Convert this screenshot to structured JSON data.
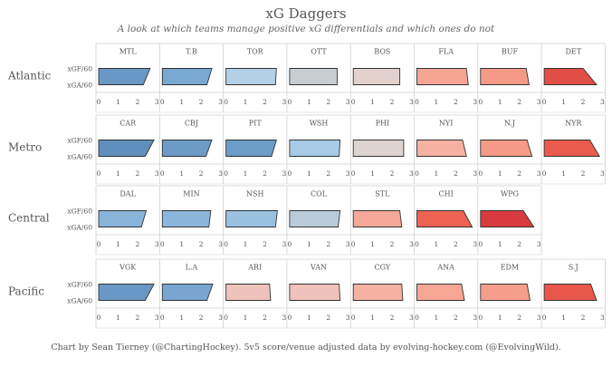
{
  "header": {
    "title": "xG Daggers",
    "subtitle": "A look at which teams manage positive xG differentials and which ones do not"
  },
  "caption": "Chart by Sean Tierney (@ChartingHockey). 5v5 score/venue adjusted data by evolving-hockey.com (@EvolvingWild).",
  "chart_data": {
    "type": "bar",
    "title": "xG Daggers",
    "subtitle": "A look at which teams manage positive xG differentials and which ones do not",
    "row_labels": [
      "xGF/60",
      "xGA/60"
    ],
    "xlim": [
      0,
      3
    ],
    "xticks": [
      "0",
      "1",
      "2",
      "3"
    ],
    "divisions": [
      {
        "name": "Atlantic",
        "teams": [
          {
            "team": "MTL",
            "xgf": 2.65,
            "xga": 2.3,
            "color": "#6a98c6"
          },
          {
            "team": "T.B",
            "xgf": 2.55,
            "xga": 2.3,
            "color": "#79a8d2"
          },
          {
            "team": "TOR",
            "xgf": 2.6,
            "xga": 2.55,
            "color": "#b3d0e6"
          },
          {
            "team": "OTT",
            "xgf": 2.45,
            "xga": 2.45,
            "color": "#c8cdd2"
          },
          {
            "team": "BOS",
            "xgf": 2.4,
            "xga": 2.4,
            "color": "#e2d0cc"
          },
          {
            "team": "FLA",
            "xgf": 2.55,
            "xga": 2.65,
            "color": "#f6a595"
          },
          {
            "team": "BUF",
            "xgf": 2.35,
            "xga": 2.5,
            "color": "#f49a87"
          },
          {
            "team": "DET",
            "xgf": 2.0,
            "xga": 2.7,
            "color": "#e04e45"
          }
        ]
      },
      {
        "name": "Metro",
        "teams": [
          {
            "team": "CAR",
            "xgf": 2.85,
            "xga": 2.4,
            "color": "#5f8fbd"
          },
          {
            "team": "CBJ",
            "xgf": 2.55,
            "xga": 2.25,
            "color": "#6d9bc8"
          },
          {
            "team": "PIT",
            "xgf": 2.6,
            "xga": 2.35,
            "color": "#6e9cc9"
          },
          {
            "team": "WSH",
            "xgf": 2.6,
            "xga": 2.55,
            "color": "#a7cbe6"
          },
          {
            "team": "PHI",
            "xgf": 2.6,
            "xga": 2.6,
            "color": "#ddd3d0"
          },
          {
            "team": "NYI",
            "xgf": 2.35,
            "xga": 2.55,
            "color": "#f6b1a3"
          },
          {
            "team": "N.J",
            "xgf": 2.4,
            "xga": 2.65,
            "color": "#f49a87"
          },
          {
            "team": "NYR",
            "xgf": 2.35,
            "xga": 2.85,
            "color": "#ea5a4d"
          }
        ]
      },
      {
        "name": "Central",
        "teams": [
          {
            "team": "DAL",
            "xgf": 2.45,
            "xga": 2.2,
            "color": "#89b4da"
          },
          {
            "team": "MIN",
            "xgf": 2.5,
            "xga": 2.4,
            "color": "#8cb7dc"
          },
          {
            "team": "NSH",
            "xgf": 2.65,
            "xga": 2.55,
            "color": "#9bc1e1"
          },
          {
            "team": "COL",
            "xgf": 2.6,
            "xga": 2.5,
            "color": "#b9cbd9"
          },
          {
            "team": "STL",
            "xgf": 2.4,
            "xga": 2.5,
            "color": "#f5a898"
          },
          {
            "team": "CHI",
            "xgf": 2.4,
            "xga": 2.85,
            "color": "#ec6352"
          },
          {
            "team": "WPG",
            "xgf": 2.2,
            "xga": 2.75,
            "color": "#d93a3e"
          }
        ]
      },
      {
        "name": "Pacific",
        "teams": [
          {
            "team": "VGK",
            "xgf": 2.85,
            "xga": 2.4,
            "color": "#6a98c6"
          },
          {
            "team": "L.A",
            "xgf": 2.6,
            "xga": 2.3,
            "color": "#78a6d1"
          },
          {
            "team": "ARI",
            "xgf": 2.25,
            "xga": 2.3,
            "color": "#edc3bb"
          },
          {
            "team": "VAN",
            "xgf": 2.55,
            "xga": 2.6,
            "color": "#efc3bb"
          },
          {
            "team": "CGY",
            "xgf": 2.5,
            "xga": 2.55,
            "color": "#f6b1a3"
          },
          {
            "team": "ANA",
            "xgf": 2.3,
            "xga": 2.45,
            "color": "#f7a696"
          },
          {
            "team": "EDM",
            "xgf": 2.4,
            "xga": 2.55,
            "color": "#f59e8c"
          },
          {
            "team": "S.J",
            "xgf": 2.4,
            "xga": 2.7,
            "color": "#e9574b"
          }
        ]
      }
    ]
  }
}
